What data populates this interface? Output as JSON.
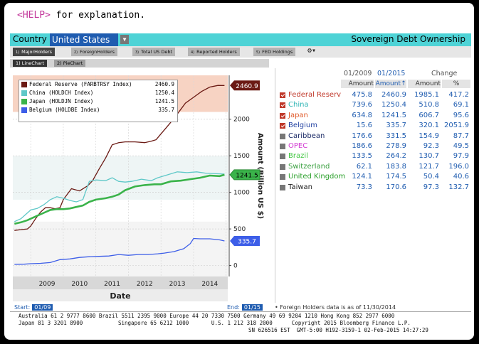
{
  "help": {
    "tag": "<HELP>",
    "text": " for explanation."
  },
  "header": {
    "country_label": "Country",
    "country_value": "United States",
    "app_title": "Sovereign Debt Ownership"
  },
  "tabs": [
    {
      "num": "1)",
      "label": "MajorHolders",
      "active": true
    },
    {
      "num": "2)",
      "label": "ForeignHolders",
      "active": false
    },
    {
      "num": "3)",
      "label": "Total US Debt",
      "active": false
    },
    {
      "num": "4)",
      "label": "Reported Holders",
      "active": false
    },
    {
      "num": "5)",
      "label": "FED Holdings",
      "active": false
    }
  ],
  "tab_more": "⚙▾",
  "subtabs": [
    {
      "num": "1)",
      "label": "LineChart",
      "active": true
    },
    {
      "num": "2)",
      "label": "PieChart",
      "active": false
    }
  ],
  "chart_data": {
    "type": "line",
    "xlabel": "Date",
    "ylabel": "Amount (Billion US $)",
    "x_ticks": [
      "2009",
      "2010",
      "2011",
      "2012",
      "2013",
      "2014"
    ],
    "y_ticks": [
      0,
      500,
      1000,
      1500,
      2000
    ],
    "ylim": [
      -150,
      2600
    ],
    "xlim": [
      2008.45,
      2015.05
    ],
    "grid": true,
    "legend_position": "top-left",
    "series": [
      {
        "name": "Federal Reserve (FARBTRSY Index)",
        "last": "2460.9",
        "color": "#6b1a14",
        "points": [
          [
            2008.5,
            480
          ],
          [
            2008.7,
            490
          ],
          [
            2008.9,
            500
          ],
          [
            2009.0,
            540
          ],
          [
            2009.15,
            640
          ],
          [
            2009.3,
            730
          ],
          [
            2009.45,
            790
          ],
          [
            2009.6,
            790
          ],
          [
            2009.75,
            775
          ],
          [
            2009.9,
            790
          ],
          [
            2010.0,
            900
          ],
          [
            2010.25,
            1050
          ],
          [
            2010.5,
            1020
          ],
          [
            2010.75,
            1090
          ],
          [
            2010.9,
            1160
          ],
          [
            2011.1,
            1320
          ],
          [
            2011.3,
            1470
          ],
          [
            2011.5,
            1650
          ],
          [
            2011.7,
            1680
          ],
          [
            2011.9,
            1690
          ],
          [
            2012.2,
            1690
          ],
          [
            2012.5,
            1680
          ],
          [
            2012.7,
            1700
          ],
          [
            2012.85,
            1720
          ],
          [
            2013.0,
            1800
          ],
          [
            2013.25,
            1930
          ],
          [
            2013.5,
            2070
          ],
          [
            2013.75,
            2220
          ],
          [
            2014.0,
            2300
          ],
          [
            2014.25,
            2380
          ],
          [
            2014.5,
            2440
          ],
          [
            2014.75,
            2462
          ],
          [
            2014.95,
            2461
          ]
        ]
      },
      {
        "name": "China (HOLDCH Index)",
        "last": "1250.4",
        "color": "#5fc8c8",
        "points": [
          [
            2008.5,
            600
          ],
          [
            2008.7,
            640
          ],
          [
            2008.9,
            720
          ],
          [
            2009.0,
            760
          ],
          [
            2009.2,
            780
          ],
          [
            2009.4,
            830
          ],
          [
            2009.6,
            900
          ],
          [
            2009.8,
            940
          ],
          [
            2010.0,
            920
          ],
          [
            2010.2,
            890
          ],
          [
            2010.4,
            870
          ],
          [
            2010.6,
            900
          ],
          [
            2010.8,
            1150
          ],
          [
            2011.0,
            1170
          ],
          [
            2011.3,
            1160
          ],
          [
            2011.5,
            1200
          ],
          [
            2011.7,
            1150
          ],
          [
            2011.9,
            1140
          ],
          [
            2012.1,
            1150
          ],
          [
            2012.4,
            1180
          ],
          [
            2012.7,
            1160
          ],
          [
            2012.9,
            1200
          ],
          [
            2013.2,
            1240
          ],
          [
            2013.5,
            1280
          ],
          [
            2013.8,
            1270
          ],
          [
            2014.1,
            1280
          ],
          [
            2014.4,
            1260
          ],
          [
            2014.7,
            1255
          ],
          [
            2014.95,
            1250
          ]
        ]
      },
      {
        "name": "Japan (HOLDJN Index)",
        "last": "1241.5",
        "color": "#3ab34a",
        "points": [
          [
            2008.5,
            570
          ],
          [
            2008.7,
            590
          ],
          [
            2008.9,
            620
          ],
          [
            2009.0,
            640
          ],
          [
            2009.2,
            680
          ],
          [
            2009.4,
            720
          ],
          [
            2009.6,
            760
          ],
          [
            2009.8,
            770
          ],
          [
            2010.0,
            770
          ],
          [
            2010.2,
            780
          ],
          [
            2010.4,
            800
          ],
          [
            2010.6,
            820
          ],
          [
            2010.8,
            870
          ],
          [
            2011.0,
            900
          ],
          [
            2011.3,
            920
          ],
          [
            2011.5,
            940
          ],
          [
            2011.7,
            970
          ],
          [
            2011.9,
            1030
          ],
          [
            2012.2,
            1080
          ],
          [
            2012.5,
            1100
          ],
          [
            2012.8,
            1110
          ],
          [
            2013.0,
            1110
          ],
          [
            2013.3,
            1150
          ],
          [
            2013.6,
            1160
          ],
          [
            2013.9,
            1180
          ],
          [
            2014.2,
            1200
          ],
          [
            2014.5,
            1230
          ],
          [
            2014.8,
            1222
          ],
          [
            2014.95,
            1241
          ]
        ]
      },
      {
        "name": "Belgium (HOLDBE Index)",
        "last": "335.7",
        "color": "#3d5ee8",
        "points": [
          [
            2008.5,
            15
          ],
          [
            2008.8,
            18
          ],
          [
            2009.0,
            25
          ],
          [
            2009.3,
            30
          ],
          [
            2009.6,
            40
          ],
          [
            2009.9,
            80
          ],
          [
            2010.2,
            90
          ],
          [
            2010.5,
            110
          ],
          [
            2010.8,
            120
          ],
          [
            2011.1,
            125
          ],
          [
            2011.4,
            130
          ],
          [
            2011.7,
            150
          ],
          [
            2012.0,
            140
          ],
          [
            2012.3,
            150
          ],
          [
            2012.6,
            150
          ],
          [
            2012.9,
            160
          ],
          [
            2013.1,
            170
          ],
          [
            2013.4,
            190
          ],
          [
            2013.7,
            230
          ],
          [
            2013.9,
            300
          ],
          [
            2014.0,
            370
          ],
          [
            2014.2,
            365
          ],
          [
            2014.5,
            365
          ],
          [
            2014.8,
            350
          ],
          [
            2014.95,
            336
          ]
        ]
      }
    ]
  },
  "date_range": {
    "start_label": "Start:",
    "start_value": "01/09",
    "end_label": "End:",
    "end_value": "01/15"
  },
  "table": {
    "header_dates": {
      "d1": "01/2009",
      "d2": "01/2015"
    },
    "header_change": "Change",
    "col_headers": [
      "Amount",
      "Amount",
      "Amount",
      "%"
    ],
    "sort_arrow": "↑",
    "rows": [
      {
        "name": "Federal Reserv",
        "color": "#c0392b",
        "checked": true,
        "a2009": "475.8",
        "a2015": "2460.9",
        "chg": "1985.1",
        "pct": "417.2"
      },
      {
        "name": "China",
        "color": "#2fb5b5",
        "checked": true,
        "a2009": "739.6",
        "a2015": "1250.4",
        "chg": "510.8",
        "pct": "69.1"
      },
      {
        "name": "Japan",
        "color": "#e05a2a",
        "checked": true,
        "a2009": "634.8",
        "a2015": "1241.5",
        "chg": "606.7",
        "pct": "95.6"
      },
      {
        "name": "Belgium",
        "color": "#1f3fa0",
        "checked": true,
        "a2009": "15.6",
        "a2015": "335.7",
        "chg": "320.1",
        "pct": "2051.9"
      },
      {
        "name": "Caribbean",
        "color": "#1b2a66",
        "checked": false,
        "a2009": "176.6",
        "a2015": "331.5",
        "chg": "154.9",
        "pct": "87.7"
      },
      {
        "name": "OPEC",
        "color": "#d23ad2",
        "checked": false,
        "a2009": "186.6",
        "a2015": "278.9",
        "chg": "92.3",
        "pct": "49.5"
      },
      {
        "name": "Brazil",
        "color": "#43c743",
        "checked": false,
        "a2009": "133.5",
        "a2015": "264.2",
        "chg": "130.7",
        "pct": "97.9"
      },
      {
        "name": "Switzerland",
        "color": "#3aa040",
        "checked": false,
        "a2009": "62.1",
        "a2015": "183.8",
        "chg": "121.7",
        "pct": "196.0"
      },
      {
        "name": "United Kingdom",
        "color": "#2aa02a",
        "checked": false,
        "a2009": "124.1",
        "a2015": "174.5",
        "chg": "50.4",
        "pct": "40.6"
      },
      {
        "name": "Taiwan",
        "color": "#222222",
        "checked": false,
        "a2009": "73.3",
        "a2015": "170.6",
        "chg": "97.3",
        "pct": "132.7"
      }
    ],
    "footnote": "• Foreign Holders data is as of 11/30/2014"
  },
  "footer": {
    "line1": "Australia 61 2 9777 8600 Brazil 5511 2395 9000 Europe 44 20 7330 7500 Germany 49 69 9204 1210 Hong Kong 852 2977 6000",
    "line2": "Japan 81 3 3201 8900           Singapore 65 6212 1000       U.S. 1 212 318 2000      Copyright 2015 Bloomberg Finance L.P.",
    "line3": "SN 626516 EST  GMT-5:00 H192-3159-1 02-Feb-2015 14:27:29"
  }
}
